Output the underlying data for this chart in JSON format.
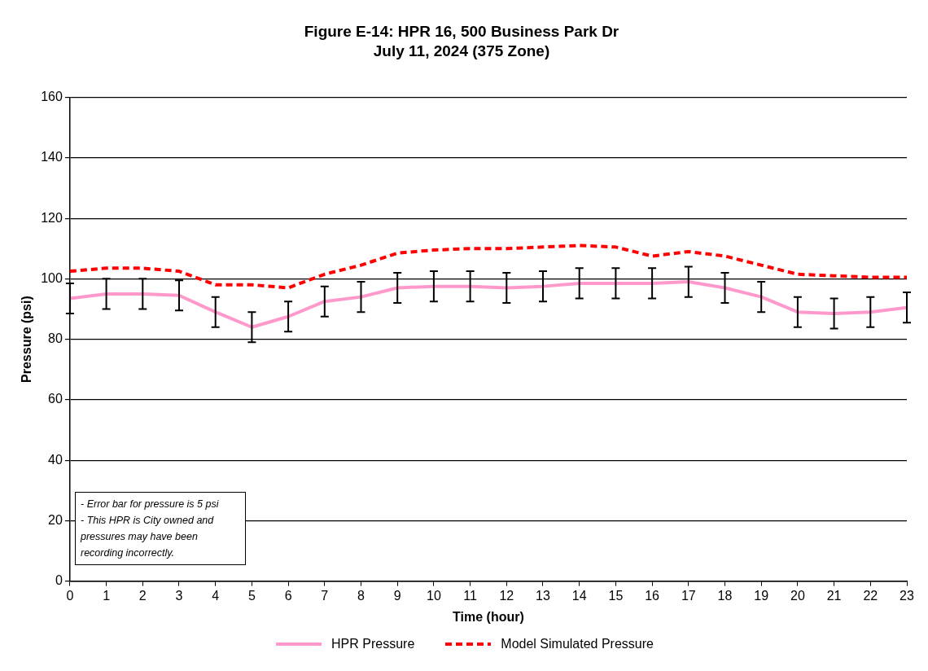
{
  "chart_data": {
    "type": "line",
    "title": "Figure E-14: HPR 16, 500 Business Park Dr",
    "subtitle": "July 11, 2024 (375 Zone)",
    "xlabel": "Time (hour)",
    "ylabel": "Pressure (psi)",
    "x": [
      0,
      1,
      2,
      3,
      4,
      5,
      6,
      7,
      8,
      9,
      10,
      11,
      12,
      13,
      14,
      15,
      16,
      17,
      18,
      19,
      20,
      21,
      22,
      23
    ],
    "series": [
      {
        "name": "HPR Pressure",
        "color": "#ff99cc",
        "line_style": "solid",
        "values": [
          93.5,
          95,
          95,
          94.5,
          89,
          84,
          87.5,
          92.5,
          94,
          97,
          97.5,
          97.5,
          97,
          97.5,
          98.5,
          98.5,
          98.5,
          99,
          97,
          94,
          89,
          88.5,
          89,
          90.5
        ],
        "errors": [
          5,
          5,
          5,
          5,
          5,
          5,
          5,
          5,
          5,
          5,
          5,
          5,
          5,
          5,
          5,
          5,
          5,
          5,
          5,
          5,
          5,
          5,
          5,
          5
        ]
      },
      {
        "name": "Model Simulated Pressure",
        "color": "#ff0000",
        "line_style": "dashed",
        "values": [
          102.5,
          103.5,
          103.5,
          102.5,
          98,
          98,
          97,
          101.5,
          104.5,
          108.5,
          109.5,
          110,
          110,
          110.5,
          111,
          110.5,
          107.5,
          109,
          107.5,
          104.5,
          101.5,
          101,
          100.5,
          100.5
        ]
      }
    ],
    "xlim": [
      0,
      23
    ],
    "xticks": [
      0,
      1,
      2,
      3,
      4,
      5,
      6,
      7,
      8,
      9,
      10,
      11,
      12,
      13,
      14,
      15,
      16,
      17,
      18,
      19,
      20,
      21,
      22,
      23
    ],
    "ylim": [
      0,
      160
    ],
    "yticks": [
      0,
      20,
      40,
      60,
      80,
      100,
      120,
      140,
      160
    ],
    "grid": "y",
    "legend": "bottom",
    "marker": "none",
    "annotations": [
      "- Error bar for pressure is 5 psi",
      "- This HPR is City owned and pressures may have been recording incorrectly."
    ]
  }
}
